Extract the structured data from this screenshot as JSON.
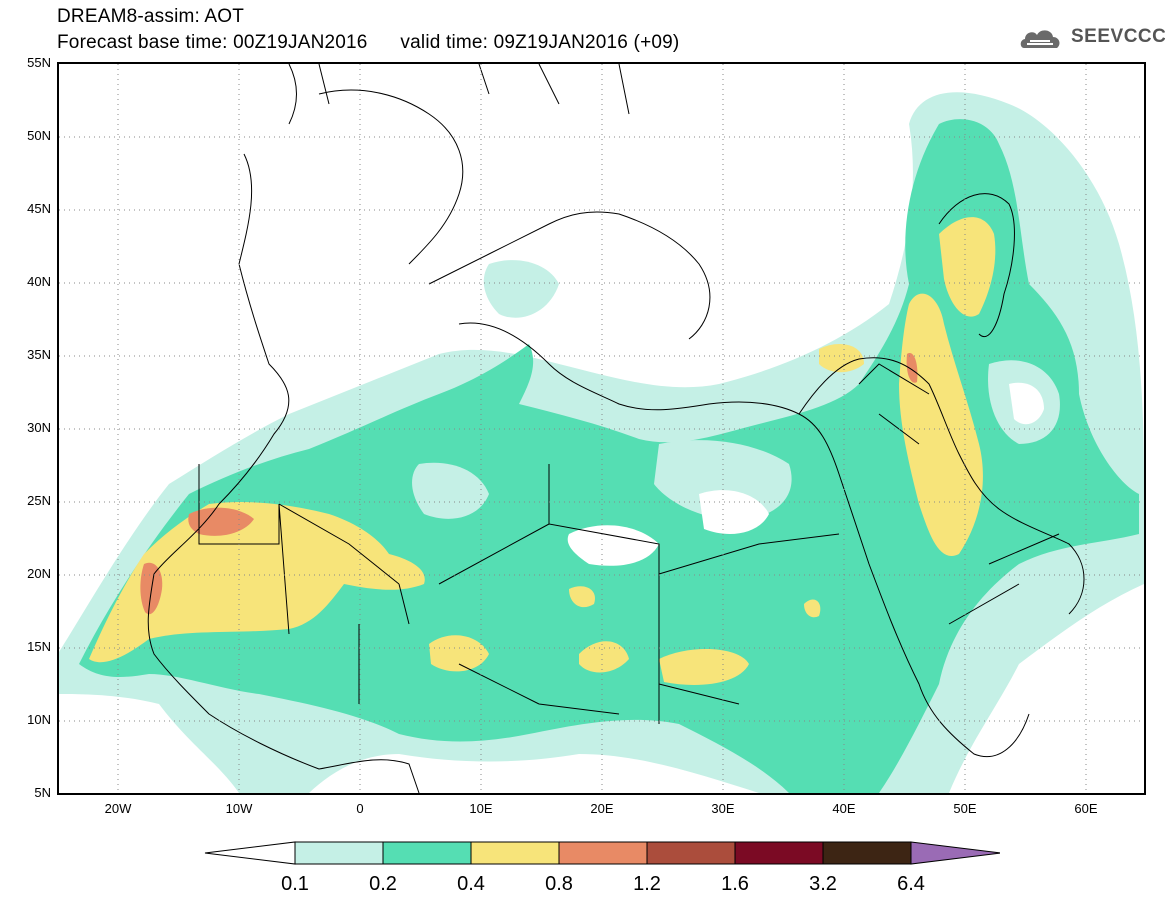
{
  "title": {
    "line1": "DREAM8-assim: AOT",
    "line2": "Forecast base time: 00Z19JAN2016      valid time: 09Z19JAN2016 (+09)"
  },
  "logo": {
    "text": "SEEVCCC",
    "icon": "cloud-icon"
  },
  "axes": {
    "lat_labels": [
      "55N",
      "50N",
      "45N",
      "40N",
      "35N",
      "30N",
      "25N",
      "20N",
      "15N",
      "10N",
      "5N"
    ],
    "lon_labels": [
      "20W",
      "10W",
      "0",
      "10E",
      "20E",
      "30E",
      "40E",
      "50E",
      "60E"
    ]
  },
  "colorbar": {
    "levels": [
      "0.1",
      "0.2",
      "0.4",
      "0.8",
      "1.2",
      "1.6",
      "3.2",
      "6.4"
    ],
    "colors": [
      "#ffffff",
      "#c5f0e6",
      "#55deb3",
      "#f7e47a",
      "#e88a65",
      "#ab4d3c",
      "#7b0a24",
      "#3d2514",
      "#9a6bb5"
    ]
  }
}
